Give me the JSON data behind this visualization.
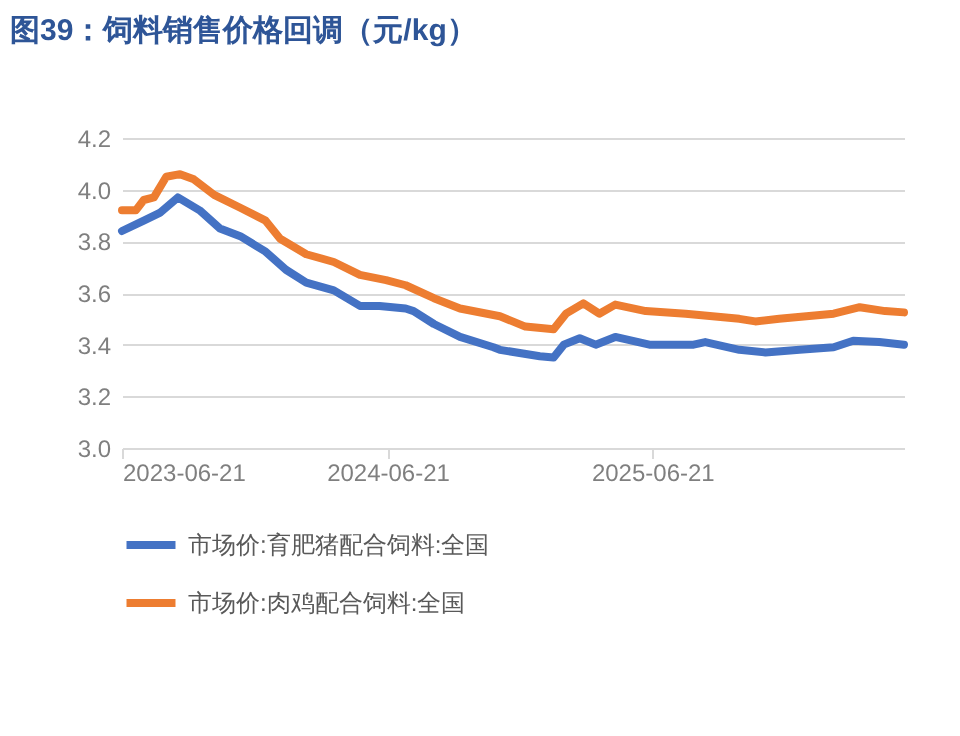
{
  "chart_data": {
    "type": "line",
    "title": "图39：饲料销售价格回调（元/kg）",
    "xlim": [
      "2023-06-21",
      "2026-06-03"
    ],
    "xticks": [
      "2023-06-21",
      "2024-06-21",
      "2025-06-21"
    ],
    "ylim": [
      3.0,
      4.2
    ],
    "yticks": [
      {
        "value": 3,
        "label": "3.0"
      },
      3.2,
      3.4,
      3.6,
      3.8,
      {
        "value": 4,
        "label": "4.0"
      },
      4.2
    ],
    "grid": "y",
    "legend": "bottom",
    "line_style": "solid",
    "marker": "none",
    "series": [
      {
        "name": "市场价:育肥猪配合饲料:全国",
        "color": "#4472c4",
        "x": [
          "2023-06-21",
          "2023-07-21",
          "2023-08-12",
          "2023-09-06",
          "2023-10-06",
          "2023-11-03",
          "2023-12-01",
          "2024-01-05",
          "2024-02-02",
          "2024-03-01",
          "2024-04-08",
          "2024-05-14",
          "2024-06-10",
          "2024-07-16",
          "2024-07-27",
          "2024-08-24",
          "2024-09-29",
          "2024-11-14",
          "2024-11-23",
          "2025-01-17",
          "2025-02-05",
          "2025-02-19",
          "2025-03-13",
          "2025-04-04",
          "2025-05-01",
          "2025-06-17",
          "2025-08-17",
          "2025-09-02",
          "2025-10-19",
          "2025-11-24",
          "2026-01-10",
          "2026-02-26",
          "2026-03-25",
          "2026-04-30",
          "2026-06-03"
        ],
        "values": [
          3.84,
          3.88,
          3.91,
          3.97,
          3.92,
          3.85,
          3.82,
          3.76,
          3.69,
          3.64,
          3.61,
          3.55,
          3.55,
          3.54,
          3.53,
          3.48,
          3.43,
          3.39,
          3.38,
          3.355,
          3.35,
          3.4,
          3.425,
          3.4,
          3.43,
          3.4,
          3.4,
          3.41,
          3.38,
          3.37,
          3.38,
          3.39,
          3.415,
          3.41,
          3.4
        ]
      },
      {
        "name": "市场价:肉鸡配合饲料:全国",
        "color": "#ed7d31",
        "x": [
          "2023-06-21",
          "2023-07-10",
          "2023-07-21",
          "2023-08-04",
          "2023-08-21",
          "2023-09-09",
          "2023-09-28",
          "2023-10-26",
          "2023-12-01",
          "2024-01-05",
          "2024-01-25",
          "2024-03-01",
          "2024-04-08",
          "2024-05-14",
          "2024-06-19",
          "2024-07-16",
          "2024-08-24",
          "2024-09-29",
          "2024-11-23",
          "2024-12-28",
          "2025-02-05",
          "2025-02-22",
          "2025-03-18",
          "2025-04-09",
          "2025-05-01",
          "2025-06-12",
          "2025-08-06",
          "2025-10-19",
          "2025-11-10",
          "2025-12-13",
          "2026-02-26",
          "2026-04-03",
          "2026-05-08",
          "2026-06-03"
        ],
        "values": [
          3.92,
          3.92,
          3.96,
          3.97,
          4.05,
          4.06,
          4.04,
          3.98,
          3.93,
          3.88,
          3.81,
          3.75,
          3.72,
          3.67,
          3.65,
          3.63,
          3.58,
          3.54,
          3.51,
          3.47,
          3.46,
          3.52,
          3.56,
          3.52,
          3.555,
          3.53,
          3.52,
          3.5,
          3.49,
          3.5,
          3.52,
          3.545,
          3.53,
          3.525
        ]
      }
    ]
  }
}
